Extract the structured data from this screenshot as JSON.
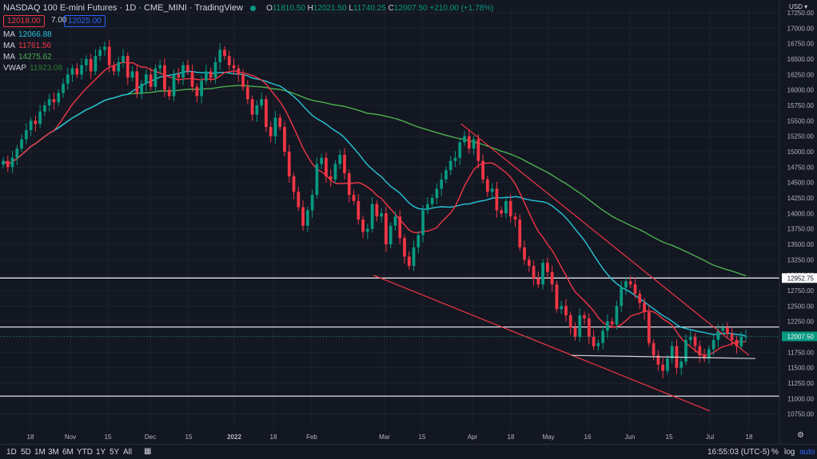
{
  "header": {
    "title": "NASDAQ 100 E-mini Futures · 1D · CME_MINI · TradingView",
    "ohlc": [
      {
        "k": "O",
        "v": "11810.50"
      },
      {
        "k": "H",
        "v": "12021.50"
      },
      {
        "k": "L",
        "v": "11740.25"
      },
      {
        "k": "C",
        "v": "12007.50"
      }
    ],
    "change": "+210.00 (+1.78%)",
    "bid": "12018.00",
    "spread": "7.00",
    "ask": "12025.00",
    "currency": "USD"
  },
  "indicators": [
    {
      "name": "MA",
      "value": "12066.88",
      "color": "#26c6da"
    },
    {
      "name": "MA",
      "value": "11761.56",
      "color": "#f23645"
    },
    {
      "name": "MA",
      "value": "14275.62",
      "color": "#4caf50"
    },
    {
      "name": "VWAP",
      "value": "11923.08",
      "color": "#2e7d32"
    }
  ],
  "bottom": {
    "timeframes": [
      "1D",
      "5D",
      "1M",
      "3M",
      "6M",
      "YTD",
      "1Y",
      "5Y",
      "All"
    ],
    "clock": "16:55:03 (UTC-5)",
    "percent": "%",
    "log": "log",
    "auto": "auto"
  },
  "chart_data": {
    "type": "candlestick",
    "ylim": [
      10500,
      17250
    ],
    "y_ticks": [
      10750,
      11000,
      11250,
      11500,
      11750,
      12000,
      12250,
      12500,
      12750,
      13000,
      13250,
      13500,
      13750,
      14000,
      14250,
      14500,
      14750,
      15000,
      15250,
      15500,
      15750,
      16000,
      16250,
      16500,
      16750,
      17000,
      17250
    ],
    "x_ticks": [
      "18",
      "Nov",
      "15",
      "Dec",
      "15",
      "2022",
      "18",
      "Feb",
      "Mar",
      "15",
      "Apr",
      "18",
      "May",
      "16",
      "Jun",
      "15",
      "Jul",
      "18"
    ],
    "closes": [
      14850,
      14750,
      14900,
      15050,
      15200,
      15350,
      15500,
      15450,
      15650,
      15750,
      15850,
      15800,
      15950,
      16100,
      16250,
      16350,
      16250,
      16400,
      16500,
      16300,
      16550,
      16650,
      16700,
      16400,
      16300,
      16450,
      16550,
      16200,
      16300,
      15950,
      16100,
      16250,
      16050,
      16350,
      16400,
      16000,
      15900,
      16250,
      16200,
      16400,
      16300,
      16050,
      15900,
      16150,
      16300,
      16200,
      16450,
      16650,
      16550,
      16400,
      16350,
      16250,
      16050,
      15850,
      15600,
      15750,
      15850,
      15400,
      15250,
      15550,
      15400,
      15000,
      14600,
      14350,
      14100,
      13800,
      14050,
      14300,
      14800,
      14900,
      14600,
      14550,
      14800,
      14950,
      14650,
      14300,
      14200,
      13900,
      13700,
      13750,
      14150,
      13950,
      14000,
      13500,
      13800,
      13950,
      13600,
      13300,
      13150,
      13450,
      13650,
      14050,
      14150,
      14250,
      14400,
      14550,
      14700,
      14850,
      14900,
      15150,
      15250,
      15050,
      15200,
      14850,
      14550,
      14350,
      14400,
      14050,
      14000,
      14200,
      13950,
      13900,
      13450,
      13250,
      13150,
      12950,
      12850,
      13200,
      13050,
      12850,
      12450,
      12500,
      12350,
      12150,
      12000,
      12350,
      12300,
      12000,
      11850,
      11900,
      12100,
      12250,
      12200,
      12500,
      12800,
      12900,
      12850,
      12700,
      12550,
      12400,
      11900,
      11700,
      11550,
      11450,
      11650,
      11850,
      11500,
      11600,
      11950,
      12000,
      11850,
      11700,
      11650,
      11800,
      11950,
      12100,
      12150,
      12050,
      11950,
      11850,
      12000,
      12007.5
    ],
    "sma_labels": [
      "fast MA (red)",
      "medium MA (cyan)",
      "slow MA (green)"
    ],
    "resistance_lines": [
      12952.75,
      12160,
      11040
    ],
    "last_price": 12007.5,
    "level_labels": [
      "12952.75"
    ],
    "trendlines": [
      {
        "from": [
          0,
          13000
        ],
        "to": [
          1,
          10800
        ],
        "color": "#f23645"
      },
      {
        "from": [
          0,
          15450
        ],
        "to": [
          1,
          11700
        ],
        "color": "#f23645"
      },
      {
        "from": [
          0,
          11700
        ],
        "to": [
          1,
          11650
        ],
        "color": "#d1d4dc"
      }
    ]
  }
}
